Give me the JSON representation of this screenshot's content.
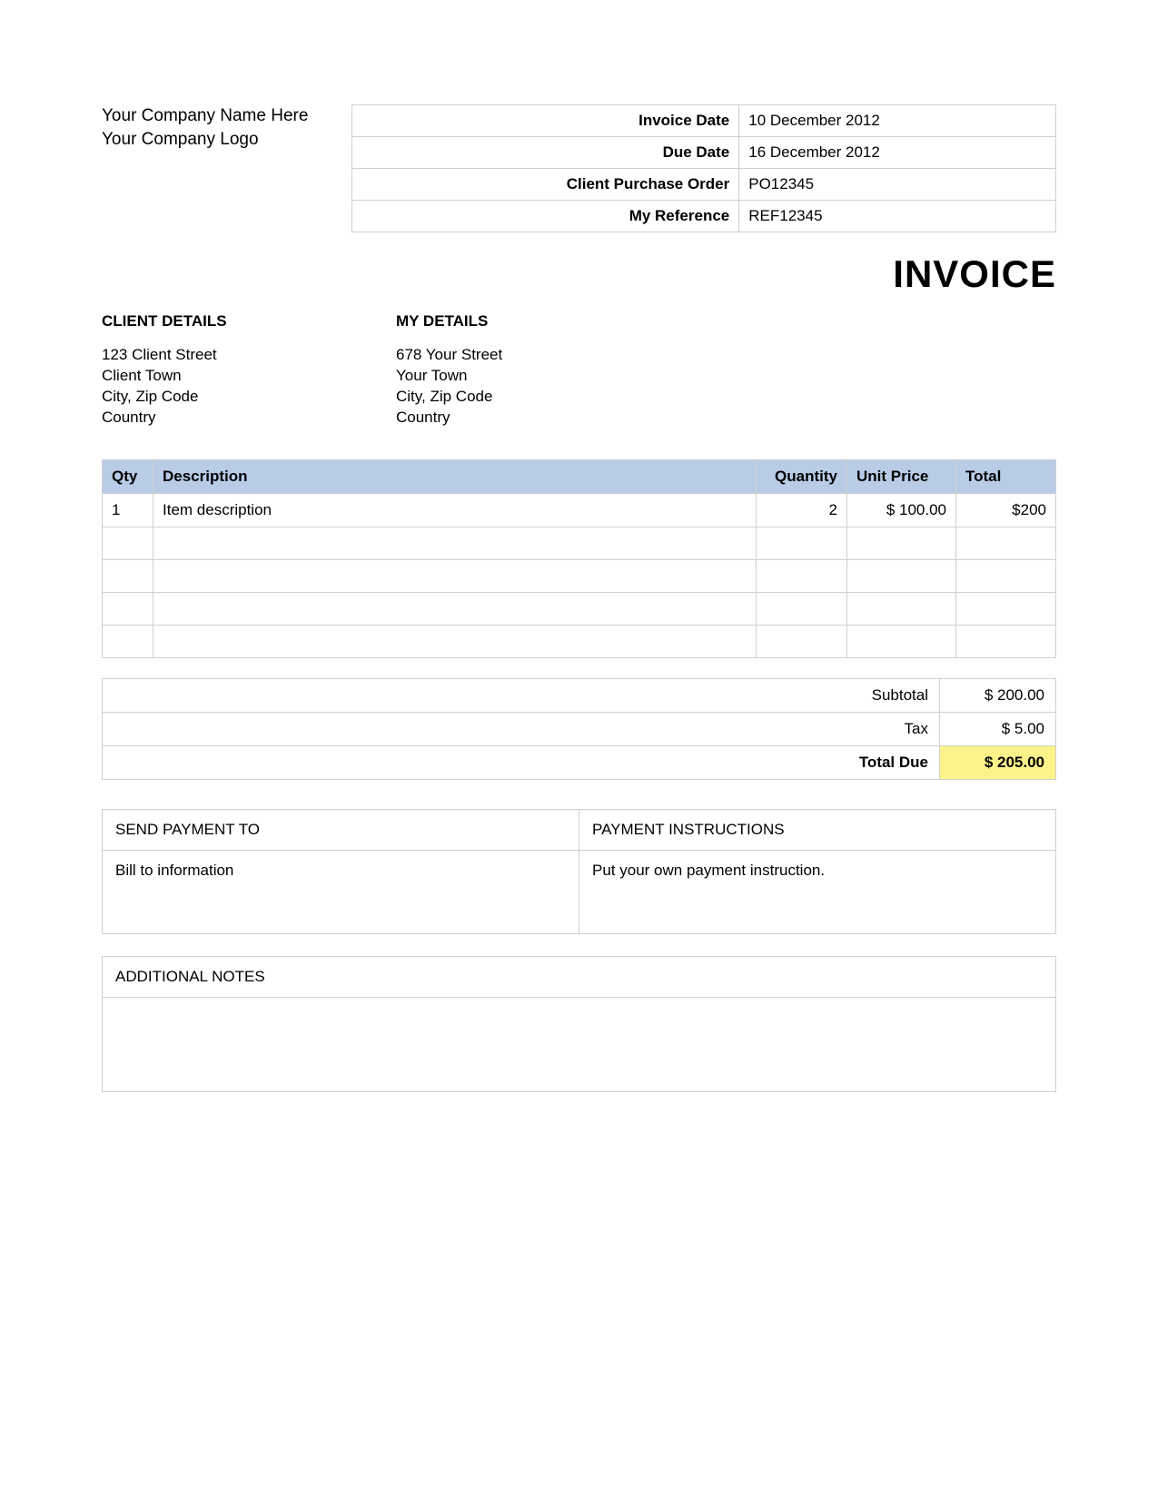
{
  "company": {
    "name": "Your Company Name Here",
    "logo": "Your Company Logo"
  },
  "meta": {
    "rows": [
      {
        "label": "Invoice Date",
        "value": "10 December  2012"
      },
      {
        "label": "Due Date",
        "value": "16 December  2012"
      },
      {
        "label": "Client Purchase Order",
        "value": "PO12345"
      },
      {
        "label": "My Reference",
        "value": "REF12345"
      }
    ]
  },
  "title": "INVOICE",
  "client_details": {
    "heading": "CLIENT DETAILS",
    "lines": [
      "123 Client Street",
      "Client Town",
      "City, Zip Code",
      "Country"
    ]
  },
  "my_details": {
    "heading": "MY DETAILS",
    "lines": [
      "678 Your Street",
      "Your Town",
      "City, Zip Code",
      "Country"
    ]
  },
  "items": {
    "header_bg": "#b8cce8",
    "border_color": "#cfcfcf",
    "columns": [
      "Qty",
      "Description",
      "Quantity",
      "Unit Price",
      "Total"
    ],
    "rows": [
      {
        "qty": "1",
        "desc": "Item description",
        "quantity": "2",
        "unit": "$ 100.00",
        "total": "$200"
      },
      {
        "qty": "",
        "desc": "",
        "quantity": "",
        "unit": "",
        "total": ""
      },
      {
        "qty": "",
        "desc": "",
        "quantity": "",
        "unit": "",
        "total": ""
      },
      {
        "qty": "",
        "desc": "",
        "quantity": "",
        "unit": "",
        "total": ""
      },
      {
        "qty": "",
        "desc": "",
        "quantity": "",
        "unit": "",
        "total": ""
      }
    ]
  },
  "totals": {
    "rows": [
      {
        "label": "Subtotal",
        "value": "$ 200.00",
        "highlight": false
      },
      {
        "label": "Tax",
        "value": "$ 5.00",
        "highlight": false
      },
      {
        "label": "Total Due",
        "value": "$ 205.00",
        "highlight": true
      }
    ],
    "highlight_color": "#fcf48a"
  },
  "payment": {
    "send_to_label": "SEND PAYMENT TO",
    "instructions_label": "PAYMENT INSTRUCTIONS",
    "send_to": "Bill to information",
    "instructions": "Put your own payment instruction."
  },
  "notes": {
    "heading": "ADDITIONAL NOTES",
    "body": ""
  }
}
